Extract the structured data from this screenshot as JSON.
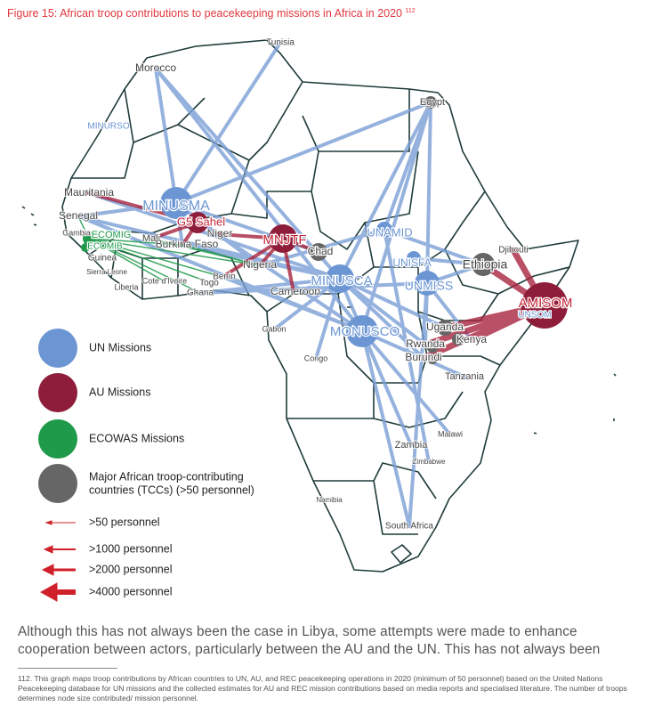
{
  "title": "Figure 15: African troop contributions to peacekeeping missions in Africa in 2020",
  "title_note": "112",
  "map": {
    "labels": [
      "Tunisia",
      "Morocco",
      "Egypt",
      "MINURSO",
      "Mauritania",
      "Senegal",
      "Gambia",
      "ECOMIG",
      "ECOMIB",
      "Guinea",
      "Sierra Leone",
      "Liberia",
      "Mali",
      "Cote d'Ivoire",
      "Burkina Faso",
      "Ghana",
      "Togo",
      "Benin",
      "Niger",
      "Nigeria",
      "Cameroon",
      "Chad",
      "MINUSMA",
      "G5 Sahel",
      "MNJTF",
      "UNAMID",
      "UNISFA",
      "Ethiopia",
      "Djibouti",
      "UNMISS",
      "MINUSCA",
      "AMISOM",
      "UNSOM",
      "Gabon",
      "Congo",
      "MONUSCO",
      "Uganda",
      "Kenya",
      "Rwanda",
      "Burundi",
      "Tanzania",
      "Malawi",
      "Zambia",
      "Zimbabwe",
      "Namibia",
      "South Africa"
    ]
  },
  "legend": {
    "missions": [
      "UN Missions",
      "AU Missions",
      "ECOWAS Missions"
    ],
    "tcc": [
      "Major African troop-contributing",
      "countries (TCCs) (>50 personnel)"
    ],
    "arrows": [
      ">50 personnel",
      ">1000 personnel",
      ">2000 personnel",
      ">4000 personnel"
    ]
  },
  "paragraph": "Although this has not always been the case in Libya, some attempts were made to enhance cooperation between actors, particularly between the AU and the UN. This has not always been",
  "footnote": "112. This graph maps troop contributions by African countries to UN, AU, and REC peacekeeping operations in 2020 (minimum of 50 personnel) based on the United Nations Peacekeeping database for UN missions and the collected estimates for AU and REC mission contributions based on media reports and specialised literature. The number of troops determines node size contributed/ mission personnel."
}
